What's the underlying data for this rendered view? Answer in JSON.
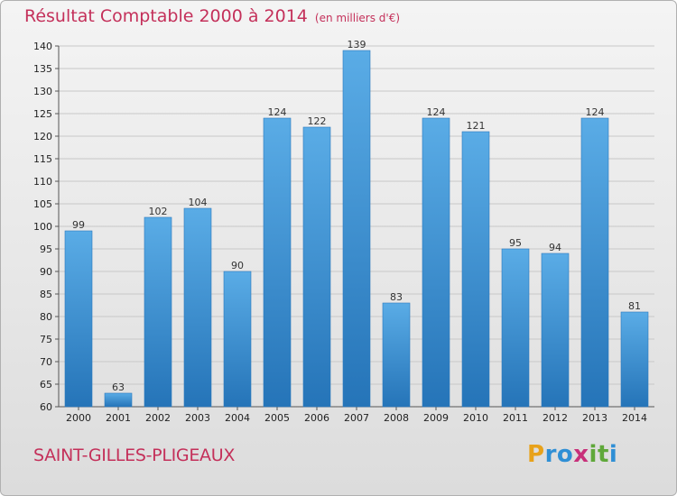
{
  "chart_data": {
    "type": "bar",
    "title": "Résultat Comptable 2000 à 2014",
    "subtitle": "(en milliers d'€)",
    "categories": [
      "2000",
      "2001",
      "2002",
      "2003",
      "2004",
      "2005",
      "2006",
      "2007",
      "2008",
      "2009",
      "2010",
      "2011",
      "2012",
      "2013",
      "2014"
    ],
    "values": [
      99,
      63,
      102,
      104,
      90,
      124,
      122,
      139,
      83,
      124,
      121,
      95,
      94,
      124,
      81
    ],
    "ylim": [
      60,
      140
    ],
    "yticks": [
      60,
      65,
      70,
      75,
      80,
      85,
      90,
      95,
      100,
      105,
      110,
      115,
      120,
      125,
      130,
      135,
      140
    ],
    "grid": true,
    "legend": "none",
    "bar_color": "#3d8fd1"
  },
  "footer": {
    "commune": "SAINT-GILLES-PLIGEAUX",
    "logo_letters": [
      "P",
      "r",
      "o",
      "x",
      "i",
      "t",
      "i"
    ],
    "logo_colors": [
      "#e8a21a",
      "#2f8fd5",
      "#2f8fd5",
      "#c8307a",
      "#5fa83a",
      "#5fa83a",
      "#2f8fd5"
    ]
  }
}
